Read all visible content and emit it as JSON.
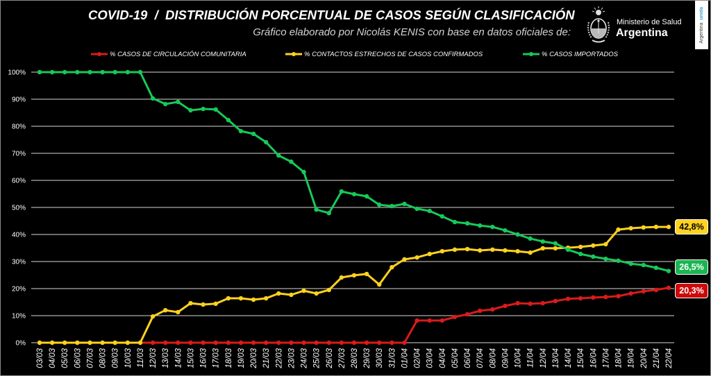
{
  "chart_data": {
    "type": "line",
    "title": "COVID-19  /  DISTRIBUCIÓN PORCENTUAL DE CASOS SEGÚN CLASIFICACIÓN",
    "subtitle": "Gráfico elaborado por Nicolás KENIS con base en datos oficiales de:",
    "xlabel": "",
    "ylabel": "",
    "ylim": [
      0,
      100
    ],
    "y_ticks": [
      0,
      10,
      20,
      30,
      40,
      50,
      60,
      70,
      80,
      90,
      100
    ],
    "y_tick_labels": [
      "0%",
      "10%",
      "20%",
      "30%",
      "40%",
      "50%",
      "60%",
      "70%",
      "80%",
      "90%",
      "100%"
    ],
    "grid": true,
    "legend_position": "top",
    "categories": [
      "03/03",
      "04/03",
      "05/03",
      "06/03",
      "07/03",
      "08/03",
      "09/03",
      "10/03",
      "11/03",
      "12/03",
      "13/03",
      "14/03",
      "15/03",
      "16/03",
      "17/03",
      "18/03",
      "19/03",
      "20/03",
      "21/03",
      "22/03",
      "23/03",
      "24/03",
      "25/03",
      "26/03",
      "27/03",
      "28/03",
      "29/03",
      "30/03",
      "31/03",
      "01/04",
      "02/04",
      "03/04",
      "04/04",
      "05/04",
      "06/04",
      "07/04",
      "08/04",
      "09/04",
      "10/04",
      "11/04",
      "12/04",
      "13/04",
      "14/04",
      "15/04",
      "16/04",
      "17/04",
      "18/04",
      "19/04",
      "20/04",
      "21/04",
      "22/04"
    ],
    "series": [
      {
        "name": "% CASOS DE CIRCULACIÓN COMUNITARIA",
        "color": "#d91b1b",
        "end_label": "20,3%",
        "values": [
          0,
          0,
          0,
          0,
          0,
          0,
          0,
          0,
          0,
          0,
          0,
          0,
          0,
          0,
          0,
          0,
          0,
          0,
          0,
          0,
          0,
          0,
          0,
          0,
          0,
          0,
          0,
          0,
          0,
          0,
          8.2,
          8.2,
          8.2,
          9.5,
          10.5,
          11.8,
          12.3,
          13.6,
          14.6,
          14.4,
          14.6,
          15.4,
          16.2,
          16.4,
          16.7,
          16.9,
          17.2,
          18.2,
          19.0,
          19.5,
          20.3
        ]
      },
      {
        "name": "% CONTACTOS ESTRECHOS DE CASOS CONFIRMADOS",
        "color": "#ffd21f",
        "end_label": "42,8%",
        "values": [
          0,
          0,
          0,
          0,
          0,
          0,
          0,
          0,
          0,
          9.7,
          12.0,
          11.3,
          14.6,
          14.1,
          14.4,
          16.4,
          16.4,
          15.9,
          16.4,
          18.2,
          17.7,
          19.2,
          18.2,
          19.5,
          24.1,
          24.9,
          25.4,
          21.5,
          27.9,
          30.8,
          31.5,
          32.8,
          33.8,
          34.4,
          34.6,
          34.1,
          34.4,
          34.1,
          33.8,
          33.3,
          34.9,
          34.9,
          35.1,
          35.4,
          35.9,
          36.4,
          41.8,
          42.3,
          42.6,
          42.8,
          42.8
        ]
      },
      {
        "name": "% CASOS IMPORTADOS",
        "color": "#17c95a",
        "end_label": "26,5%",
        "values": [
          100,
          100,
          100,
          100,
          100,
          100,
          100,
          100,
          100,
          90.3,
          88.2,
          89.0,
          85.9,
          86.4,
          86.2,
          82.3,
          78.2,
          77.2,
          74.1,
          69.2,
          66.9,
          63.1,
          49.2,
          47.9,
          55.9,
          54.9,
          54.1,
          51.0,
          50.5,
          51.3,
          49.5,
          48.7,
          46.7,
          44.6,
          44.1,
          43.3,
          42.8,
          41.5,
          40.0,
          38.5,
          37.4,
          36.7,
          34.4,
          32.8,
          31.8,
          31.0,
          30.3,
          29.2,
          28.7,
          27.7,
          26.5
        ]
      }
    ]
  },
  "logo": {
    "ministry": "Ministerio de Salud",
    "country": "Argentina",
    "badge_main": "Argentina",
    "badge_accent": "unida",
    "seal_icon": "coat-of-arms-icon"
  },
  "callout_colors": {
    "yellow": "#ffd21f",
    "green": "#1bb552",
    "red": "#cc0a0a"
  }
}
